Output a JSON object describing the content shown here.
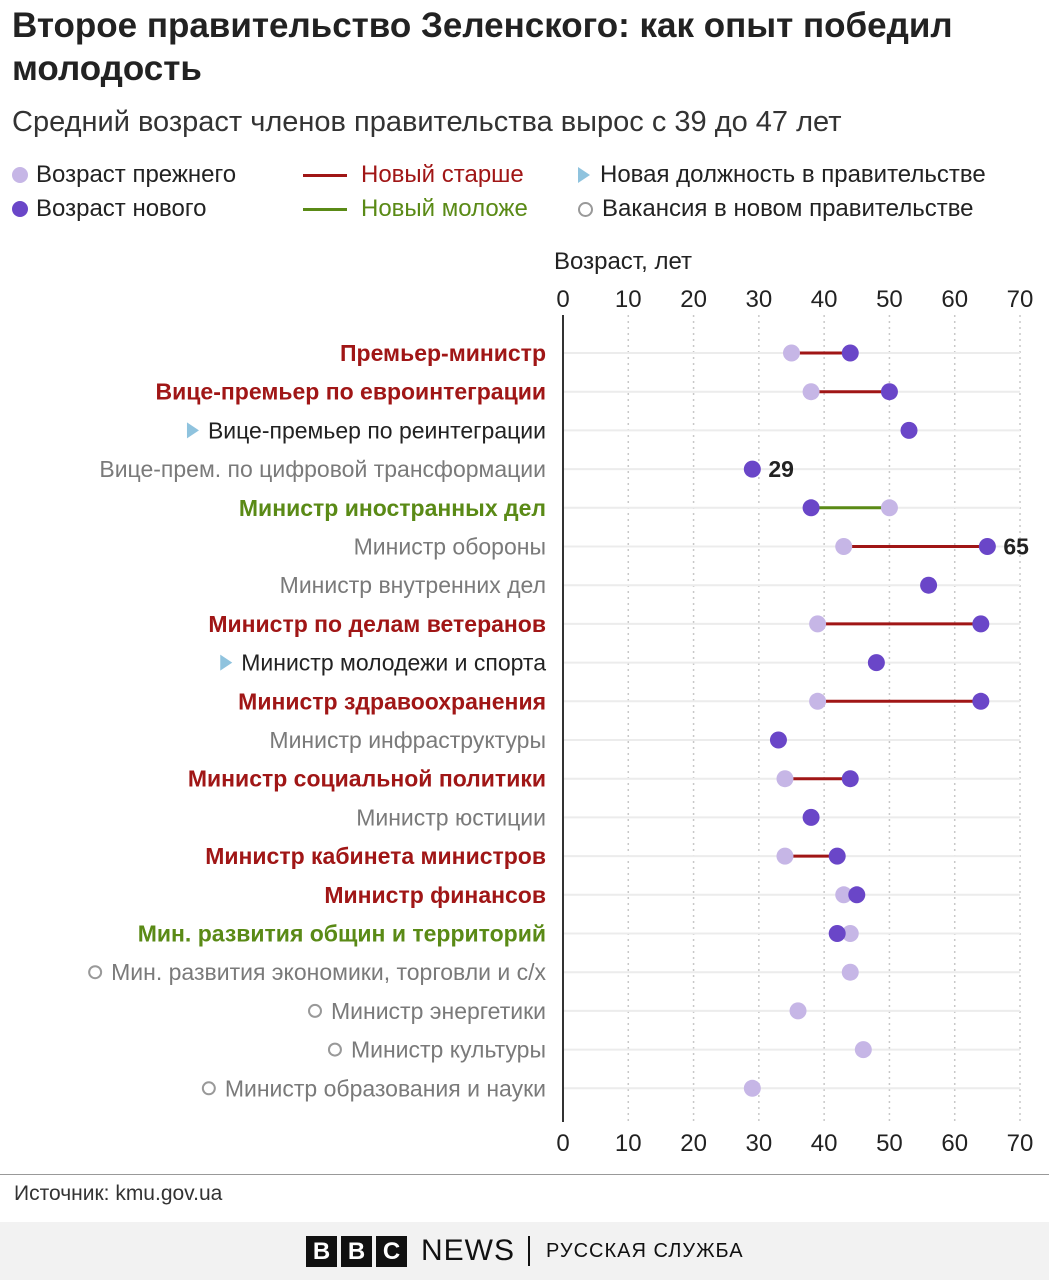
{
  "title": "Второе правительство Зеленского: как опыт победил молодость",
  "subtitle": "Средний возраст членов правительства вырос с 39 до 47 лет",
  "legend": {
    "prev": "Возраст прежнего",
    "new": "Возраст нового",
    "older": "Новый старше",
    "younger": "Новый моложе",
    "new_post": "Новая должность в правительстве",
    "vacancy": "Вакансия в новом правительстве"
  },
  "colors": {
    "prev": "#c6b6e6",
    "new": "#6a46c8",
    "older": "#a01616",
    "younger": "#5a8a16",
    "new_post": "#8fc3de",
    "neutral": "#7a7a7a",
    "black": "#222222"
  },
  "source": "Источник: kmu.gov.ua",
  "footer": {
    "logo_letters": [
      "B",
      "B",
      "C"
    ],
    "news": "NEWS",
    "service": "РУССКАЯ СЛУЖБА"
  },
  "chart_data": {
    "type": "dumbbell",
    "xlabel": "Возраст, лет",
    "xlim": [
      0,
      70
    ],
    "ticks": [
      0,
      10,
      20,
      30,
      40,
      50,
      60,
      70
    ],
    "grid": true,
    "rows": [
      {
        "label": "Премьер-министр",
        "prev": 35,
        "new": 44,
        "status": "older"
      },
      {
        "label": "Вице-премьер по евроинтеграции",
        "prev": 38,
        "new": 50,
        "status": "older"
      },
      {
        "label": "Вице-премьер по реинтеграции",
        "prev": null,
        "new": 53,
        "status": "new_post"
      },
      {
        "label": "Вице-прем. по цифровой трансформации",
        "prev": null,
        "new": 29,
        "status": "neutral",
        "annotation": "29"
      },
      {
        "label": "Министр иностранных дел",
        "prev": 50,
        "new": 38,
        "status": "younger"
      },
      {
        "label": "Министр обороны",
        "prev": 43,
        "new": 65,
        "status": "neutral_older",
        "annotation": "65"
      },
      {
        "label": "Министр внутренних дел",
        "prev": null,
        "new": 56,
        "status": "neutral"
      },
      {
        "label": "Министр по делам ветеранов",
        "prev": 39,
        "new": 64,
        "status": "older"
      },
      {
        "label": "Министр молодежи и спорта",
        "prev": null,
        "new": 48,
        "status": "new_post"
      },
      {
        "label": "Министр здравоохранения",
        "prev": 39,
        "new": 64,
        "status": "older"
      },
      {
        "label": "Министр инфраструктуры",
        "prev": null,
        "new": 33,
        "status": "neutral"
      },
      {
        "label": "Министр социальной политики",
        "prev": 34,
        "new": 44,
        "status": "older"
      },
      {
        "label": "Министр юстиции",
        "prev": null,
        "new": 38,
        "status": "neutral"
      },
      {
        "label": "Министр кабинета министров",
        "prev": 34,
        "new": 42,
        "status": "older"
      },
      {
        "label": "Министр финансов",
        "prev": 43,
        "new": 45,
        "status": "older"
      },
      {
        "label": "Мин. развития общин и территорий",
        "prev": 44,
        "new": 42,
        "status": "younger"
      },
      {
        "label": "Мин. развития экономики, торговли и с/х",
        "prev": 44,
        "new": null,
        "status": "vacancy"
      },
      {
        "label": "Министр энергетики",
        "prev": 36,
        "new": null,
        "status": "vacancy"
      },
      {
        "label": "Министр культуры",
        "prev": 46,
        "new": null,
        "status": "vacancy"
      },
      {
        "label": "Министр образования и науки",
        "prev": 29,
        "new": null,
        "status": "vacancy"
      }
    ]
  }
}
